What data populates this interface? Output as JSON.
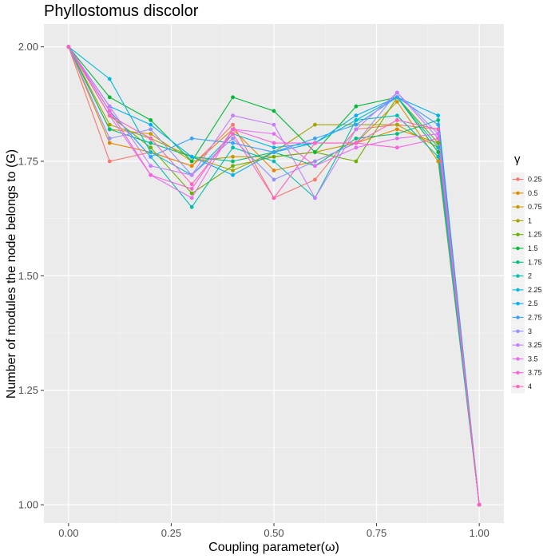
{
  "chart_data": {
    "type": "line",
    "title": "Phyllostomus discolor",
    "xlabel": "Coupling parameter(ω)",
    "ylabel": "Number of modules the node belongs to (G)",
    "xlim": [
      -0.06,
      1.06
    ],
    "ylim": [
      0.96,
      2.05
    ],
    "x_ticks": [
      0.0,
      0.25,
      0.5,
      0.75,
      1.0
    ],
    "x_tick_labels": [
      "0.00",
      "0.25",
      "0.50",
      "0.75",
      "1.00"
    ],
    "y_ticks": [
      1.0,
      1.25,
      1.5,
      1.75,
      2.0
    ],
    "y_tick_labels": [
      "1.00",
      "1.25",
      "1.50",
      "1.75",
      "2.00"
    ],
    "grid": true,
    "legend_title": "γ",
    "legend_position": "right",
    "x": [
      0.0,
      0.1,
      0.2,
      0.3,
      0.4,
      0.5,
      0.6,
      0.7,
      0.8,
      0.9,
      1.0
    ],
    "series": [
      {
        "name": "0.25",
        "color": "#F8766D",
        "values": [
          2.0,
          1.75,
          1.77,
          1.74,
          1.83,
          1.67,
          1.71,
          1.82,
          1.83,
          1.82,
          1.0
        ]
      },
      {
        "name": "0.5",
        "color": "#E58700",
        "values": [
          2.0,
          1.79,
          1.77,
          1.74,
          1.82,
          1.73,
          1.75,
          1.79,
          1.82,
          1.79,
          1.0
        ]
      },
      {
        "name": "0.75",
        "color": "#C99800",
        "values": [
          2.0,
          1.82,
          1.81,
          1.75,
          1.76,
          1.76,
          1.77,
          1.79,
          1.88,
          1.75,
          1.0
        ]
      },
      {
        "name": "1",
        "color": "#A3A500",
        "values": [
          2.0,
          1.83,
          1.8,
          1.76,
          1.73,
          1.77,
          1.83,
          1.83,
          1.83,
          1.78,
          1.0
        ]
      },
      {
        "name": "1.25",
        "color": "#6BB100",
        "values": [
          2.0,
          1.85,
          1.78,
          1.68,
          1.74,
          1.76,
          1.77,
          1.75,
          1.89,
          1.79,
          1.0
        ]
      },
      {
        "name": "1.5",
        "color": "#00BA38",
        "values": [
          2.0,
          1.89,
          1.84,
          1.75,
          1.89,
          1.86,
          1.77,
          1.87,
          1.89,
          1.77,
          1.0
        ]
      },
      {
        "name": "1.75",
        "color": "#00BF7D",
        "values": [
          2.0,
          1.82,
          1.79,
          1.76,
          1.75,
          1.77,
          1.74,
          1.8,
          1.81,
          1.84,
          1.0
        ]
      },
      {
        "name": "2",
        "color": "#00C0AF",
        "values": [
          2.0,
          1.86,
          1.76,
          1.65,
          1.78,
          1.75,
          1.67,
          1.84,
          1.85,
          1.76,
          1.0
        ]
      },
      {
        "name": "2.25",
        "color": "#00BCD8",
        "values": [
          2.0,
          1.93,
          1.77,
          1.72,
          1.81,
          1.78,
          1.79,
          1.84,
          1.89,
          1.78,
          1.0
        ]
      },
      {
        "name": "2.5",
        "color": "#00B0F6",
        "values": [
          2.0,
          1.87,
          1.83,
          1.76,
          1.72,
          1.77,
          1.79,
          1.85,
          1.89,
          1.85,
          1.0
        ]
      },
      {
        "name": "2.75",
        "color": "#35A2FF",
        "values": [
          2.0,
          1.86,
          1.76,
          1.8,
          1.79,
          1.77,
          1.8,
          1.83,
          1.89,
          1.83,
          1.0
        ]
      },
      {
        "name": "3",
        "color": "#9590FF",
        "values": [
          2.0,
          1.8,
          1.82,
          1.72,
          1.8,
          1.71,
          1.75,
          1.79,
          1.9,
          1.81,
          1.0
        ]
      },
      {
        "name": "3.25",
        "color": "#C77CFF",
        "values": [
          2.0,
          1.87,
          1.74,
          1.72,
          1.85,
          1.83,
          1.67,
          1.82,
          1.9,
          1.8,
          1.0
        ]
      },
      {
        "name": "3.5",
        "color": "#E76BF3",
        "values": [
          2.0,
          1.85,
          1.72,
          1.67,
          1.82,
          1.81,
          1.74,
          1.78,
          1.8,
          1.81,
          1.0
        ]
      },
      {
        "name": "3.75",
        "color": "#FA62DB",
        "values": [
          2.0,
          1.86,
          1.72,
          1.69,
          1.82,
          1.79,
          1.79,
          1.79,
          1.78,
          1.8,
          1.0
        ]
      },
      {
        "name": "4",
        "color": "#FF62BC",
        "values": [
          2.0,
          1.85,
          1.8,
          1.7,
          1.81,
          1.67,
          1.79,
          1.79,
          1.84,
          1.82,
          1.0
        ]
      }
    ]
  }
}
